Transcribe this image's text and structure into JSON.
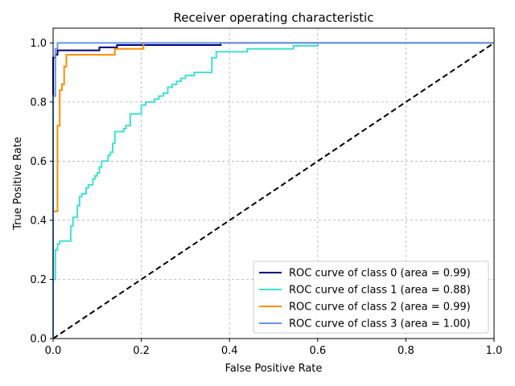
{
  "chart_data": {
    "type": "line",
    "title": "Receiver operating characteristic",
    "xlabel": "False Positive Rate",
    "ylabel": "True Positive Rate",
    "xlim": [
      0.0,
      1.0
    ],
    "ylim": [
      0.0,
      1.05
    ],
    "xticks": [
      0.0,
      0.2,
      0.4,
      0.6,
      0.8,
      1.0
    ],
    "yticks": [
      0.0,
      0.2,
      0.4,
      0.6,
      0.8,
      1.0
    ],
    "xtick_labels": [
      "0.0",
      "0.2",
      "0.4",
      "0.6",
      "0.8",
      "1.0"
    ],
    "ytick_labels": [
      "0.0",
      "0.2",
      "0.4",
      "0.6",
      "0.8",
      "1.0"
    ],
    "grid": true,
    "legend_position": "bottom-right",
    "series": [
      {
        "name": "ROC curve of class 0 (area = 0.99)",
        "color": "#000080",
        "x": [
          0.0,
          0.0,
          0.0,
          0.0,
          0.0,
          0.0,
          0.005,
          0.005,
          0.01,
          0.01,
          0.105,
          0.105,
          0.145,
          0.145,
          0.38,
          0.38,
          1.0
        ],
        "y": [
          0.0,
          0.17,
          0.17,
          0.4,
          0.4,
          0.95,
          0.95,
          0.96,
          0.96,
          0.975,
          0.975,
          0.985,
          0.985,
          0.993,
          0.993,
          1.0,
          1.0
        ]
      },
      {
        "name": "ROC curve of class 1 (area = 0.88)",
        "color": "#40E0D0",
        "x": [
          0.0,
          0.0,
          0.005,
          0.005,
          0.01,
          0.01,
          0.015,
          0.015,
          0.04,
          0.04,
          0.045,
          0.045,
          0.055,
          0.055,
          0.06,
          0.06,
          0.065,
          0.065,
          0.075,
          0.075,
          0.08,
          0.08,
          0.09,
          0.09,
          0.095,
          0.095,
          0.1,
          0.1,
          0.105,
          0.105,
          0.11,
          0.11,
          0.125,
          0.125,
          0.13,
          0.13,
          0.135,
          0.135,
          0.14,
          0.14,
          0.16,
          0.16,
          0.165,
          0.165,
          0.175,
          0.175,
          0.2,
          0.2,
          0.21,
          0.21,
          0.23,
          0.23,
          0.24,
          0.24,
          0.25,
          0.25,
          0.26,
          0.26,
          0.27,
          0.27,
          0.28,
          0.28,
          0.29,
          0.29,
          0.3,
          0.3,
          0.32,
          0.32,
          0.36,
          0.36,
          0.37,
          0.37,
          0.44,
          0.44,
          0.545,
          0.545,
          0.6,
          0.6,
          1.0
        ],
        "y": [
          0.0,
          0.2,
          0.2,
          0.3,
          0.3,
          0.32,
          0.32,
          0.33,
          0.33,
          0.38,
          0.38,
          0.41,
          0.41,
          0.45,
          0.45,
          0.48,
          0.48,
          0.49,
          0.49,
          0.51,
          0.51,
          0.52,
          0.52,
          0.54,
          0.54,
          0.55,
          0.55,
          0.56,
          0.56,
          0.58,
          0.58,
          0.6,
          0.6,
          0.62,
          0.62,
          0.63,
          0.63,
          0.66,
          0.66,
          0.7,
          0.7,
          0.71,
          0.71,
          0.72,
          0.72,
          0.76,
          0.76,
          0.79,
          0.79,
          0.8,
          0.8,
          0.81,
          0.81,
          0.82,
          0.82,
          0.83,
          0.83,
          0.85,
          0.85,
          0.86,
          0.86,
          0.87,
          0.87,
          0.88,
          0.88,
          0.89,
          0.89,
          0.9,
          0.9,
          0.95,
          0.95,
          0.97,
          0.97,
          0.98,
          0.98,
          0.99,
          0.99,
          1.0,
          1.0
        ]
      },
      {
        "name": "ROC curve of class 2 (area = 0.99)",
        "color": "#FF8C00",
        "x": [
          0.0,
          0.0,
          0.01,
          0.01,
          0.015,
          0.015,
          0.02,
          0.02,
          0.025,
          0.025,
          0.03,
          0.03,
          0.14,
          0.14,
          0.205,
          0.205,
          1.0
        ],
        "y": [
          0.0,
          0.43,
          0.43,
          0.72,
          0.72,
          0.84,
          0.84,
          0.86,
          0.86,
          0.92,
          0.92,
          0.96,
          0.96,
          0.98,
          0.98,
          1.0,
          1.0
        ]
      },
      {
        "name": "ROC curve of class 3 (area = 1.00)",
        "color": "#6495ED",
        "x": [
          0.0,
          0.0,
          0.005,
          0.005,
          0.01,
          0.01,
          1.0
        ],
        "y": [
          0.0,
          0.82,
          0.82,
          0.98,
          0.98,
          1.0,
          1.0
        ]
      }
    ],
    "reference_line": {
      "x": [
        0.0,
        1.0
      ],
      "y": [
        0.0,
        1.0
      ],
      "color": "#000000",
      "style": "dashed"
    }
  }
}
